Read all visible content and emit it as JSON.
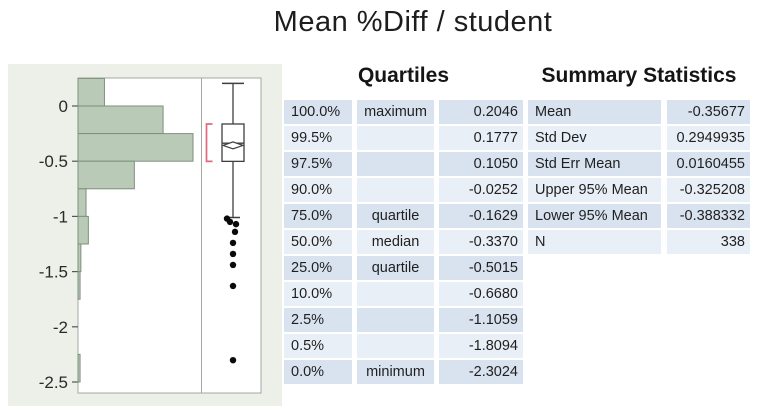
{
  "title": "Mean %Diff / student",
  "quartiles": {
    "header": "Quartiles",
    "rows": [
      {
        "pct": "100.0%",
        "name": "maximum",
        "value": "0.2046"
      },
      {
        "pct": "99.5%",
        "name": "",
        "value": "0.1777"
      },
      {
        "pct": "97.5%",
        "name": "",
        "value": "0.1050"
      },
      {
        "pct": "90.0%",
        "name": "",
        "value": "-0.0252"
      },
      {
        "pct": "75.0%",
        "name": "quartile",
        "value": "-0.1629"
      },
      {
        "pct": "50.0%",
        "name": "median",
        "value": "-0.3370"
      },
      {
        "pct": "25.0%",
        "name": "quartile",
        "value": "-0.5015"
      },
      {
        "pct": "10.0%",
        "name": "",
        "value": "-0.6680"
      },
      {
        "pct": "2.5%",
        "name": "",
        "value": "-1.1059"
      },
      {
        "pct": "0.5%",
        "name": "",
        "value": "-1.8094"
      },
      {
        "pct": "0.0%",
        "name": "minimum",
        "value": "-2.3024"
      }
    ]
  },
  "summary": {
    "header": "Summary Statistics",
    "rows": [
      {
        "label": "Mean",
        "value": "-0.35677"
      },
      {
        "label": "Std Dev",
        "value": "0.2949935"
      },
      {
        "label": "Std Err Mean",
        "value": "0.0160455"
      },
      {
        "label": "Upper 95% Mean",
        "value": "-0.325208"
      },
      {
        "label": "Lower 95% Mean",
        "value": "-0.388332"
      },
      {
        "label": "N",
        "value": "338"
      }
    ]
  },
  "chart_data": {
    "type": "bar",
    "subtype": "histogram-with-outlier-boxplot",
    "title": "Mean %Diff / student",
    "orientation": "horizontal bars on vertical value axis",
    "axis": {
      "range": [
        -2.6,
        0.26
      ],
      "ticks": [
        0,
        -0.5,
        -1,
        -1.5,
        -2,
        -2.5
      ],
      "tick_labels": [
        "0",
        "-0.5",
        "-1",
        "-1.5",
        "-2",
        "-2.5"
      ],
      "grid": false
    },
    "histogram": {
      "bin_width": 0.25,
      "note": "relative bar lengths estimated from pixels, max bin = 1.0",
      "bins": [
        {
          "from": 0.0,
          "to": 0.25,
          "rel": 0.23
        },
        {
          "from": -0.25,
          "to": 0.0,
          "rel": 0.74
        },
        {
          "from": -0.5,
          "to": -0.25,
          "rel": 1.0
        },
        {
          "from": -0.75,
          "to": -0.5,
          "rel": 0.49
        },
        {
          "from": -1.0,
          "to": -0.75,
          "rel": 0.07
        },
        {
          "from": -1.25,
          "to": -1.0,
          "rel": 0.09
        },
        {
          "from": -1.5,
          "to": -1.25,
          "rel": 0.025
        },
        {
          "from": -1.75,
          "to": -1.5,
          "rel": 0.018
        },
        {
          "from": -2.0,
          "to": -1.75,
          "rel": 0
        },
        {
          "from": -2.25,
          "to": -2.0,
          "rel": 0
        },
        {
          "from": -2.5,
          "to": -2.25,
          "rel": 0.018
        }
      ]
    },
    "boxplot": {
      "maximum": 0.2046,
      "q3": -0.1629,
      "median": -0.337,
      "mean": -0.35677,
      "q1": -0.5015,
      "whisker_low": -1.01,
      "mean_ci": [
        -0.388332,
        -0.325208
      ],
      "shortest_half_bracket": [
        -0.1629,
        -0.5015
      ],
      "outliers": [
        -1.02,
        -1.05,
        -1.07,
        -1.14,
        -1.24,
        -1.34,
        -1.44,
        -1.63,
        -2.3024
      ]
    }
  },
  "colors": {
    "panel_bg": "#edf0e9",
    "plot_bg": "#ffffff",
    "frame_border": "#a3a8a0",
    "bar_fill": "#b9cab7",
    "bar_border": "#7f8f7e",
    "box_stroke": "#3f3f3f",
    "bracket": "#e0697d",
    "dot": "#0a0a0a",
    "row_dark": "#d9e3f0",
    "row_light": "#e9eff7",
    "axis_text": "#2a2a2a"
  }
}
